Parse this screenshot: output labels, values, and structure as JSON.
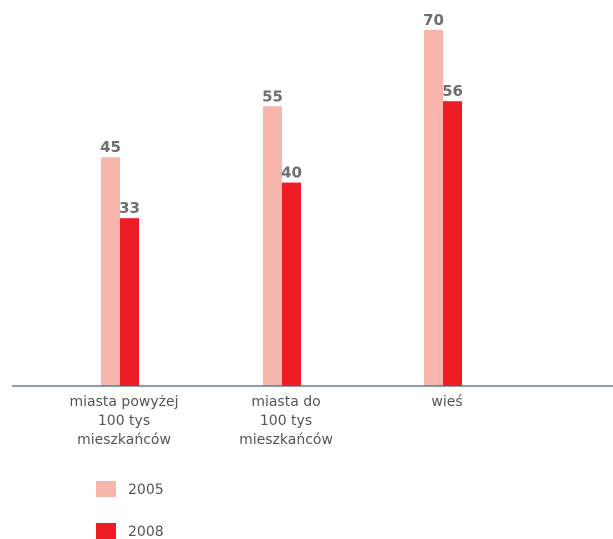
{
  "chart_data": {
    "type": "bar",
    "categories": [
      [
        "miasta powyżej",
        "100 tys",
        "mieszkańców"
      ],
      [
        "miasta do",
        "100 tys",
        "mieszkańców"
      ],
      [
        "wieś"
      ]
    ],
    "series": [
      {
        "name": "2005",
        "values": [
          45,
          55,
          70
        ],
        "color": "#f8b5ab"
      },
      {
        "name": "2008",
        "values": [
          33,
          40,
          56
        ],
        "color": "#ee1c25"
      }
    ],
    "title": "",
    "xlabel": "",
    "ylabel": "",
    "ylim": [
      0,
      70
    ],
    "grid": false,
    "legend_position": "bottom-left",
    "axis_color": "#3d6a8c"
  }
}
